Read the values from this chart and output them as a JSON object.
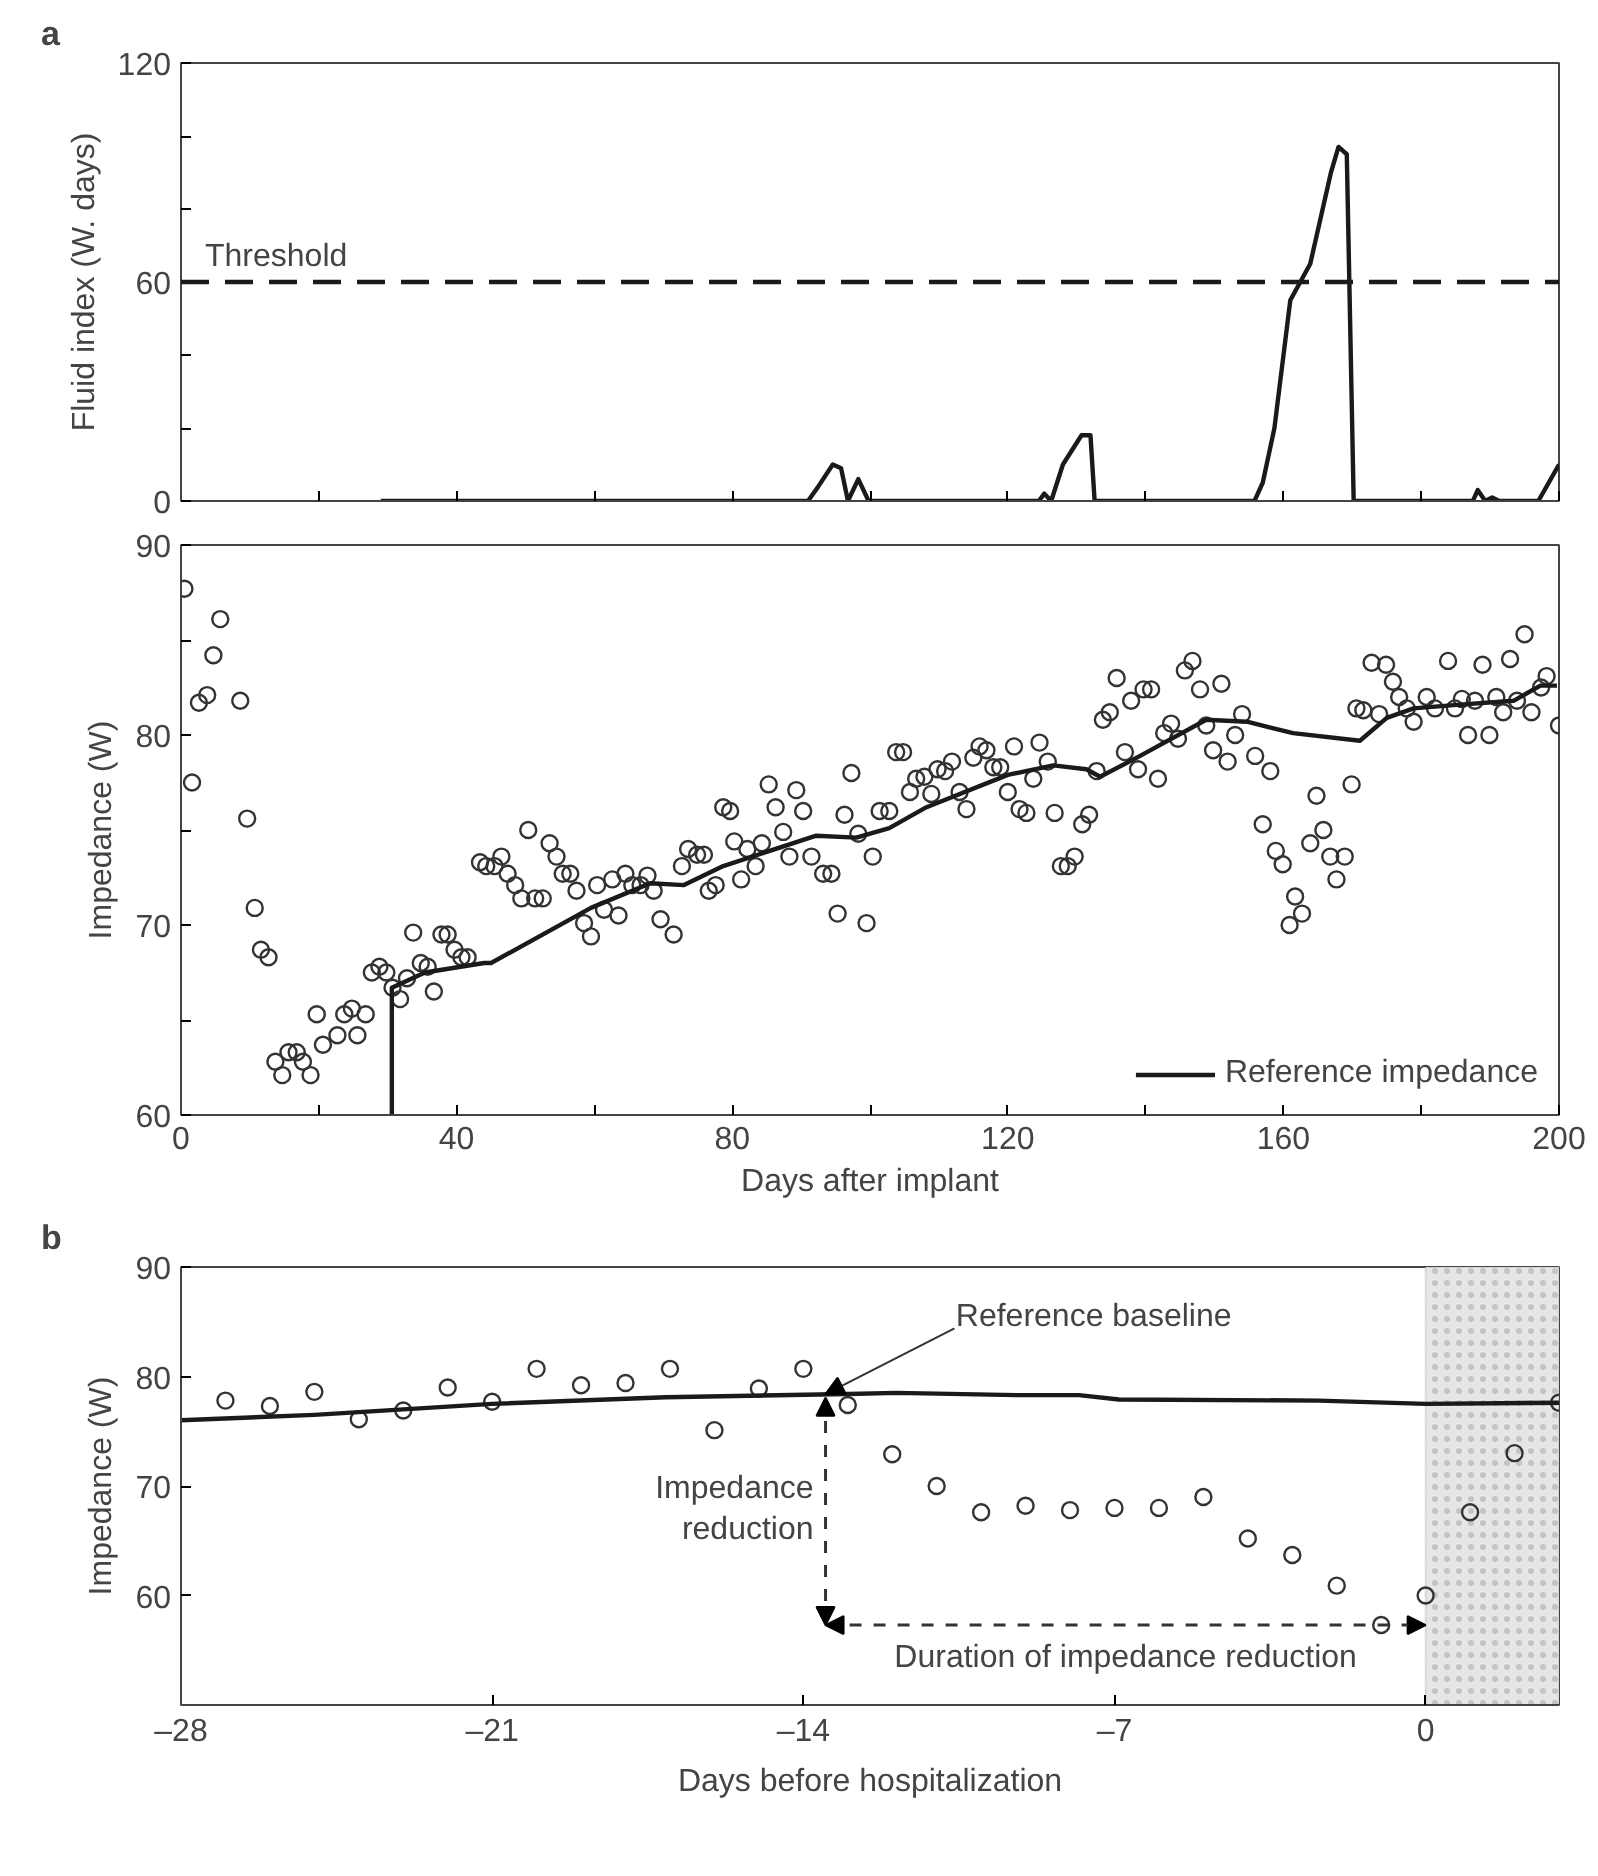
{
  "chart_data": [
    {
      "type": "line",
      "title": "a",
      "ylabel": "Fluid index (W. days)",
      "xlim": [
        0,
        200
      ],
      "ylim": [
        0,
        120
      ],
      "xticks": [
        {
          "value": 0,
          "label": null
        },
        {
          "value": 20,
          "label": null
        },
        {
          "value": 40,
          "label": null
        },
        {
          "value": 60,
          "label": null
        },
        {
          "value": 80,
          "label": null
        },
        {
          "value": 100,
          "label": null
        },
        {
          "value": 120,
          "label": null
        },
        {
          "value": 140,
          "label": null
        },
        {
          "value": 160,
          "label": null
        },
        {
          "value": 180,
          "label": null
        },
        {
          "value": 200,
          "label": null
        }
      ],
      "yticks": [
        0,
        {
          "value": 20,
          "label": null
        },
        {
          "value": 40,
          "label": null
        },
        60,
        {
          "value": 80,
          "label": null
        },
        {
          "value": 100,
          "label": null
        },
        120
      ],
      "tick_labels": "y",
      "grid": false,
      "x": [
        29,
        91,
        92.5,
        94.6,
        95.8,
        96.8,
        98.3,
        99.8,
        121,
        124.5,
        125.3,
        126.3,
        128,
        130.7,
        132,
        132.6,
        155.8,
        157,
        158.7,
        161,
        163.9,
        166.9,
        168,
        169.2,
        170.2,
        187.5,
        188.2,
        189.3,
        190.3,
        191.3,
        197,
        200
      ],
      "series": [
        {
          "color": "#1a1a1a",
          "values": [
            0,
            0,
            4,
            10,
            9,
            0,
            6,
            0,
            0,
            0,
            2,
            0,
            10,
            18,
            18,
            0,
            0,
            5,
            20,
            55,
            65,
            90,
            97,
            95,
            0,
            0,
            3,
            0,
            1,
            0,
            0,
            10
          ]
        }
      ],
      "ref_lines": [
        {
          "axis": "y",
          "value": 60,
          "label": "Threshold",
          "color": "#1a1a1a",
          "line_style": "dashed"
        }
      ]
    },
    {
      "type": "scatter",
      "xlabel": "Days after implant",
      "ylabel": "Impedance (W)",
      "xlim": [
        0,
        200
      ],
      "ylim": [
        60,
        90
      ],
      "xticks": [
        0,
        {
          "value": 20,
          "label": null
        },
        40,
        {
          "value": 60,
          "label": null
        },
        80,
        {
          "value": 100,
          "label": null
        },
        120,
        {
          "value": 140,
          "label": null
        },
        160,
        {
          "value": 180,
          "label": null
        },
        200
      ],
      "yticks": [
        60,
        {
          "value": 65,
          "label": null
        },
        70,
        {
          "value": 75,
          "label": null
        },
        80,
        {
          "value": 85,
          "label": null
        },
        90
      ],
      "grid": false,
      "legend": "bottom right",
      "series": [
        {
          "type": "scatter",
          "marker": "circle",
          "color": "#333333",
          "x": [
            0.5,
            1.6,
            2.6,
            3.8,
            4.7,
            5.7,
            8.6,
            9.6,
            10.7,
            11.6,
            12.7,
            13.7,
            14.7,
            15.6,
            16.8,
            17.7,
            18.8,
            19.7,
            20.6,
            22.7,
            23.7,
            24.8,
            25.6,
            26.8,
            27.7,
            28.8,
            29.8,
            30.7,
            31.8,
            32.8,
            33.7,
            34.8,
            35.8,
            36.7,
            37.8,
            38.7,
            39.7,
            40.7,
            41.6,
            43.4,
            44.3,
            45.5,
            46.5,
            47.4,
            48.5,
            49.4,
            50.4,
            51.4,
            52.5,
            53.5,
            54.5,
            55.4,
            56.5,
            57.4,
            58.5,
            59.5,
            60.4,
            61.4,
            62.6,
            63.5,
            64.5,
            65.5,
            66.7,
            67.7,
            68.6,
            69.6,
            71.5,
            72.7,
            73.6,
            74.9,
            75.9,
            76.6,
            77.6,
            78.7,
            79.7,
            80.3,
            81.3,
            82.2,
            83.4,
            84.3,
            85.3,
            86.3,
            87.4,
            88.3,
            89.3,
            90.3,
            91.5,
            93.2,
            94.4,
            95.3,
            96.3,
            97.3,
            98.3,
            99.5,
            100.4,
            101.4,
            102.8,
            103.8,
            104.8,
            105.8,
            106.7,
            107.9,
            108.9,
            109.8,
            110.9,
            111.9,
            113.0,
            114.0,
            115.0,
            115.9,
            116.9,
            117.9,
            118.9,
            120.0,
            120.9,
            121.7,
            122.7,
            123.7,
            124.6,
            125.8,
            126.8,
            127.7,
            128.7,
            129.7,
            130.8,
            131.8,
            132.9,
            133.8,
            134.8,
            135.8,
            137.0,
            137.9,
            138.9,
            139.7,
            140.8,
            141.8,
            142.7,
            143.7,
            144.7,
            145.7,
            146.8,
            147.9,
            148.8,
            149.8,
            151.0,
            151.9,
            153.0,
            154.0,
            155.9,
            157.0,
            158.1,
            158.9,
            159.9,
            160.9,
            161.7,
            162.7,
            163.9,
            164.8,
            165.8,
            166.8,
            167.7,
            168.9,
            169.9,
            170.6,
            171.6,
            172.8,
            173.9,
            174.9,
            175.9,
            176.8,
            177.9,
            178.9,
            180.8,
            182.0,
            183.9,
            184.9,
            185.9,
            186.8,
            187.8,
            188.9,
            189.9,
            190.9,
            191.9,
            192.9,
            193.9,
            195.0,
            196.0,
            197.4,
            198.2,
            200.0
          ],
          "values": [
            87.7,
            77.5,
            81.7,
            82.1,
            84.2,
            86.1,
            81.8,
            75.6,
            70.9,
            68.7,
            68.3,
            62.8,
            62.1,
            63.3,
            63.3,
            62.8,
            62.1,
            65.3,
            63.7,
            64.2,
            65.3,
            65.6,
            64.2,
            65.3,
            67.5,
            67.8,
            67.5,
            66.7,
            66.1,
            67.2,
            69.6,
            68.0,
            67.8,
            66.5,
            69.5,
            69.5,
            68.7,
            68.3,
            68.3,
            73.3,
            73.1,
            73.1,
            73.6,
            72.7,
            72.1,
            71.4,
            75.0,
            71.4,
            71.4,
            74.3,
            73.6,
            72.7,
            72.7,
            71.8,
            70.1,
            69.4,
            72.1,
            70.8,
            72.4,
            70.5,
            72.7,
            72.1,
            72.1,
            72.6,
            71.8,
            70.3,
            69.5,
            73.1,
            74.0,
            73.7,
            73.7,
            71.8,
            72.1,
            76.2,
            76.0,
            74.4,
            72.4,
            74.0,
            73.1,
            74.3,
            77.4,
            76.2,
            74.9,
            73.6,
            77.1,
            76.0,
            73.6,
            72.7,
            72.7,
            70.6,
            75.8,
            78.0,
            74.8,
            70.1,
            73.6,
            76.0,
            76.0,
            79.1,
            79.1,
            77.0,
            77.7,
            77.8,
            76.9,
            78.2,
            78.1,
            78.6,
            77.0,
            76.1,
            78.8,
            79.4,
            79.2,
            78.3,
            78.3,
            77.0,
            79.4,
            76.1,
            75.9,
            77.7,
            79.6,
            78.6,
            75.9,
            73.1,
            73.1,
            73.6,
            75.3,
            75.8,
            78.1,
            80.8,
            81.2,
            83.0,
            79.1,
            81.8,
            78.2,
            82.4,
            82.4,
            77.7,
            80.1,
            80.6,
            79.8,
            83.4,
            83.9,
            82.4,
            80.5,
            79.2,
            82.7,
            78.6,
            80.0,
            81.1,
            78.9,
            75.3,
            78.1,
            73.9,
            73.2,
            70.0,
            71.5,
            70.6,
            74.3,
            76.8,
            75.0,
            73.6,
            72.4,
            73.6,
            77.4,
            81.4,
            81.3,
            83.8,
            81.1,
            83.7,
            82.8,
            82.0,
            81.4,
            80.7,
            82.0,
            81.4,
            83.9,
            81.4,
            81.9,
            80.0,
            81.8,
            83.7,
            80.0,
            82.0,
            81.2,
            84.0,
            81.8,
            85.3,
            81.2,
            82.5,
            83.1,
            80.5
          ]
        },
        {
          "type": "line",
          "name": "Reference impedance",
          "color": "#1a1a1a",
          "x": [
            30.6,
            30.6,
            35.4,
            44.0,
            45.0,
            59.5,
            68.1,
            73,
            78.7,
            92.2,
            98,
            102.8,
            108.2,
            120,
            126.6,
            131.4,
            133.4,
            139.2,
            148.8,
            154.7,
            161.4,
            171.1,
            175,
            178.9,
            185.6,
            193.4,
            197.3,
            199.7
          ],
          "values": [
            60,
            66.7,
            67.5,
            68.0,
            68.0,
            70.9,
            72.2,
            72.1,
            73.1,
            74.7,
            74.6,
            75.1,
            76.2,
            77.9,
            78.4,
            78.2,
            77.8,
            78.9,
            80.8,
            80.7,
            80.1,
            79.7,
            80.9,
            81.4,
            81.6,
            81.8,
            82.6,
            82.6
          ]
        }
      ]
    },
    {
      "type": "scatter",
      "title": "b",
      "xlabel": "Days before hospitalization",
      "ylabel": "Impedance (W)",
      "xlim": [
        -28,
        3
      ],
      "ylim": [
        50,
        90
      ],
      "xticks": [
        {
          "value": -28,
          "label": "–28"
        },
        {
          "value": -21,
          "label": "–21"
        },
        {
          "value": -14,
          "label": "–14"
        },
        {
          "value": -7,
          "label": "–7"
        },
        0
      ],
      "yticks": [
        60,
        70,
        80,
        90
      ],
      "grid": false,
      "series": [
        {
          "type": "scatter",
          "marker": "circle",
          "color": "#333333",
          "x": [
            -27,
            -26,
            -25,
            -24,
            -23,
            -22,
            -21,
            -20,
            -19,
            -18,
            -17,
            -16,
            -15,
            -14,
            -13,
            -12,
            -11,
            -10,
            -9,
            -8,
            -7,
            -6,
            -5,
            -4,
            -3,
            -2,
            -1,
            0,
            1,
            2,
            3
          ],
          "values": [
            77.8,
            77.3,
            78.6,
            76.1,
            76.9,
            79.0,
            77.7,
            80.7,
            79.2,
            79.4,
            80.7,
            75.1,
            78.9,
            80.7,
            77.4,
            72.9,
            70.0,
            67.6,
            68.2,
            67.8,
            68.0,
            68.0,
            69.0,
            65.2,
            63.7,
            60.9,
            57.3,
            60.0,
            67.6,
            73.0,
            77.6
          ]
        },
        {
          "type": "line",
          "color": "#1a1a1a",
          "x": [
            -28,
            -25,
            -21,
            -17.1,
            -13,
            -11.9,
            -9.2,
            -7.8,
            -6.9,
            -2.4,
            0,
            3
          ],
          "values": [
            76.0,
            76.5,
            77.5,
            78.1,
            78.4,
            78.5,
            78.3,
            78.3,
            77.9,
            77.8,
            77.5,
            77.6
          ]
        }
      ],
      "bands": [
        {
          "axis": "x",
          "from": 0,
          "to": 3,
          "color": "#e6e6e6"
        }
      ],
      "annotations": [
        {
          "text": "Reference baseline",
          "x": -13.5,
          "y": 78.4
        },
        "Impedance reduction",
        "Duration of impedance reduction"
      ]
    }
  ]
}
